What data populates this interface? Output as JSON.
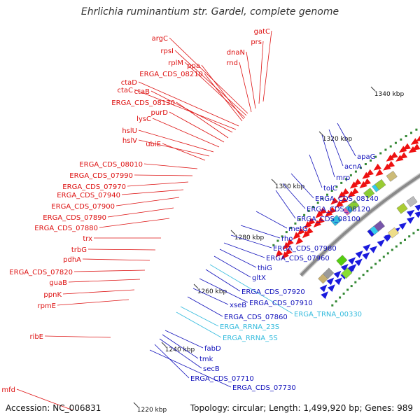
{
  "title": "Ehrlichia ruminantium str. Gardel, complete genome",
  "footer": {
    "accession": "Accession: NC_006831",
    "topology": "Topology: circular; Length: 1,499,920 bp; Genes: 989"
  },
  "colors": {
    "backbone": "#8a8a8a",
    "forward_label": "#dd1111",
    "reverse_label": "#1111bb",
    "rna_label": "#33bbdd",
    "forward_feature": "#ee1111",
    "reverse_feature": "#1a1add",
    "dots": "#338833"
  },
  "ticks": [
    {
      "label": "1340 kbp",
      "at": [
        556,
        133
      ]
    },
    {
      "label": "1320 kbp",
      "at": [
        482,
        197
      ]
    },
    {
      "label": "1300 kbp",
      "at": [
        414,
        265
      ]
    },
    {
      "label": "1280 kbp",
      "at": [
        356,
        338
      ]
    },
    {
      "label": "1260 kbp",
      "at": [
        303,
        415
      ]
    },
    {
      "label": "1240 kbp",
      "at": [
        257,
        498
      ]
    },
    {
      "label": "1220 kbp",
      "at": [
        217,
        584
      ]
    }
  ],
  "forward_genes": [
    {
      "label": "gatC",
      "at": [
        386,
        44
      ],
      "to": [
        376,
        145
      ]
    },
    {
      "label": "prs",
      "at": [
        374,
        59
      ],
      "to": [
        370,
        148
      ]
    },
    {
      "label": "dnaN",
      "at": [
        350,
        74
      ],
      "to": [
        365,
        155
      ]
    },
    {
      "label": "rnd",
      "at": [
        340,
        89
      ],
      "to": [
        359,
        160
      ]
    },
    {
      "label": "argC",
      "at": [
        240,
        54
      ],
      "to": [
        354,
        162
      ]
    },
    {
      "label": "rpsI",
      "at": [
        248,
        72
      ],
      "to": [
        352,
        165
      ]
    },
    {
      "label": "rplM",
      "at": [
        262,
        89
      ],
      "to": [
        350,
        168
      ]
    },
    {
      "label": "ppa",
      "at": [
        286,
        93
      ],
      "to": [
        348,
        170
      ]
    },
    {
      "label": "ERGA_CDS_08210",
      "at": [
        290,
        105
      ],
      "to": [
        346,
        173
      ]
    },
    {
      "label": "ctaD",
      "at": [
        196,
        117
      ],
      "to": [
        341,
        180
      ]
    },
    {
      "label": "ctaC",
      "at": [
        190,
        128
      ],
      "to": [
        337,
        185
      ]
    },
    {
      "label": "ctaB",
      "at": [
        214,
        130
      ],
      "to": [
        332,
        189
      ]
    },
    {
      "label": "ERGA_CDS_08130",
      "at": [
        250,
        146
      ],
      "to": [
        326,
        197
      ]
    },
    {
      "label": "purD",
      "at": [
        240,
        160
      ],
      "to": [
        320,
        203
      ]
    },
    {
      "label": "lysC",
      "at": [
        216,
        169
      ],
      "to": [
        313,
        210
      ]
    },
    {
      "label": "hslU",
      "at": [
        196,
        186
      ],
      "to": [
        305,
        217
      ]
    },
    {
      "label": "hslV",
      "at": [
        196,
        200
      ],
      "to": [
        299,
        223
      ]
    },
    {
      "label": "ubiE",
      "at": [
        230,
        205
      ],
      "to": [
        293,
        229
      ]
    },
    {
      "label": "ERGA_CDS_08010",
      "at": [
        204,
        234
      ],
      "to": [
        282,
        241
      ]
    },
    {
      "label": "ERGA_CDS_07990",
      "at": [
        190,
        250
      ],
      "to": [
        275,
        251
      ]
    },
    {
      "label": "ERGA_CDS_07970",
      "at": [
        180,
        266
      ],
      "to": [
        269,
        260
      ]
    },
    {
      "label": "ERGA_CDS_07940",
      "at": [
        172,
        278
      ],
      "to": [
        262,
        271
      ]
    },
    {
      "label": "ERGA_CDS_07900",
      "at": [
        164,
        294
      ],
      "to": [
        256,
        282
      ]
    },
    {
      "label": "ERGA_CDS_07890",
      "at": [
        152,
        310
      ],
      "to": [
        248,
        297
      ]
    },
    {
      "label": "ERGA_CDS_07880",
      "at": [
        140,
        325
      ],
      "to": [
        242,
        312
      ]
    },
    {
      "label": "trx",
      "at": [
        132,
        340
      ],
      "to": [
        230,
        340
      ]
    },
    {
      "label": "trbG",
      "at": [
        124,
        356
      ],
      "to": [
        222,
        357
      ]
    },
    {
      "label": "pdhA",
      "at": [
        116,
        370
      ],
      "to": [
        214,
        372
      ]
    },
    {
      "label": "ERGA_CDS_07820",
      "at": [
        104,
        388
      ],
      "to": [
        207,
        386
      ]
    },
    {
      "label": "guaB",
      "at": [
        96,
        403
      ],
      "to": [
        200,
        399
      ]
    },
    {
      "label": "ppnK",
      "at": [
        88,
        420
      ],
      "to": [
        192,
        414
      ]
    },
    {
      "label": "rpmE",
      "at": [
        80,
        436
      ],
      "to": [
        184,
        428
      ]
    },
    {
      "label": "ribE",
      "at": [
        62,
        480
      ],
      "to": [
        158,
        482
      ]
    },
    {
      "label": "mfd",
      "at": [
        22,
        556
      ],
      "to": [
        104,
        586
      ]
    }
  ],
  "reverse_genes": [
    {
      "label": "apaG",
      "at": [
        510,
        223
      ],
      "to": [
        482,
        176
      ]
    },
    {
      "label": "acnA",
      "at": [
        492,
        237
      ],
      "to": [
        470,
        185
      ]
    },
    {
      "label": "mrp",
      "at": [
        480,
        253
      ],
      "to": [
        460,
        193
      ]
    },
    {
      "label": "tolC",
      "at": [
        462,
        268
      ],
      "to": [
        442,
        221
      ]
    },
    {
      "label": "ERGA_CDS_08140",
      "at": [
        450,
        283
      ],
      "to": [
        416,
        248
      ]
    },
    {
      "label": "ERGA_CDS_08120",
      "at": [
        438,
        298
      ],
      "to": [
        404,
        262
      ]
    },
    {
      "label": "ERGA_CDS_08100",
      "at": [
        424,
        312
      ],
      "to": [
        394,
        272
      ]
    },
    {
      "label": "metG",
      "at": [
        412,
        326
      ],
      "to": [
        366,
        302
      ]
    },
    {
      "label": "rho",
      "at": [
        402,
        340
      ],
      "to": [
        344,
        322
      ]
    },
    {
      "label": "ERGA_CDS_07980",
      "at": [
        390,
        354
      ],
      "to": [
        330,
        336
      ]
    },
    {
      "label": "ERGA_CDS_07960",
      "at": [
        380,
        368
      ],
      "to": [
        320,
        347
      ]
    },
    {
      "label": "thiG",
      "at": [
        368,
        382
      ],
      "to": [
        314,
        356
      ]
    },
    {
      "label": "gltX",
      "at": [
        360,
        396
      ],
      "to": [
        306,
        366
      ]
    },
    {
      "label": "ERGA_CDS_07920",
      "at": [
        345,
        416
      ],
      "to": [
        294,
        385
      ]
    },
    {
      "label": "ERGA_CDS_07910",
      "at": [
        356,
        432
      ],
      "to": [
        285,
        398
      ]
    },
    {
      "label": "xseB",
      "at": [
        328,
        435
      ],
      "to": [
        276,
        412
      ]
    },
    {
      "label": "ERGA_CDS_07860",
      "at": [
        320,
        452
      ],
      "to": [
        268,
        424
      ]
    },
    {
      "label": "fabD",
      "at": [
        292,
        497
      ],
      "to": [
        236,
        472
      ]
    },
    {
      "label": "tmk",
      "at": [
        285,
        512
      ],
      "to": [
        232,
        478
      ]
    },
    {
      "label": "secB",
      "at": [
        290,
        526
      ],
      "to": [
        228,
        484
      ]
    },
    {
      "label": "ERGA_CDS_07710",
      "at": [
        272,
        540
      ],
      "to": [
        221,
        492
      ]
    },
    {
      "label": "ERGA_CDS_07730",
      "at": [
        332,
        553
      ],
      "to": [
        214,
        500
      ]
    }
  ],
  "rna_genes": [
    {
      "label": "ERGA_TRNA_00330",
      "at": [
        420,
        448
      ],
      "to": [
        300,
        378
      ]
    },
    {
      "label": "ERGA_RRNA_23S",
      "at": [
        314,
        466
      ],
      "to": [
        258,
        438
      ]
    },
    {
      "label": "ERGA_RRNA_5S",
      "at": [
        318,
        482
      ],
      "to": [
        252,
        446
      ]
    }
  ],
  "feature_blocks": [
    {
      "pos": 0.04,
      "ring": -26,
      "color": "#c8b070"
    },
    {
      "pos": 0.06,
      "ring": -26,
      "color": "#9a9a9a"
    },
    {
      "pos": 0.115,
      "ring": -26,
      "color": "#55cc11"
    },
    {
      "pos": 0.1,
      "ring": -44,
      "color": "#88dd33"
    },
    {
      "pos": 0.18,
      "ring": 22,
      "color": "#33bbdd"
    },
    {
      "pos": 0.23,
      "ring": 22,
      "color": "#ffaa66"
    },
    {
      "pos": 0.225,
      "ring": 22,
      "color": "#dd66aa"
    },
    {
      "pos": 0.235,
      "ring": 22,
      "color": "#33bbdd"
    },
    {
      "pos": 0.245,
      "ring": 22,
      "color": "#88cc33"
    },
    {
      "pos": 0.24,
      "ring": -24,
      "color": "#1a1add"
    },
    {
      "pos": 0.25,
      "ring": -24,
      "color": "#33ccee"
    },
    {
      "pos": 0.265,
      "ring": -24,
      "color": "#7755aa"
    },
    {
      "pos": 0.285,
      "ring": -44,
      "color": "#eedd88"
    },
    {
      "pos": 0.3,
      "ring": 22,
      "color": "#88cc33"
    },
    {
      "pos": 0.33,
      "ring": 22,
      "color": "#33ccee"
    },
    {
      "pos": 0.34,
      "ring": 22,
      "color": "#99cc33"
    },
    {
      "pos": 0.38,
      "ring": 22,
      "color": "#ccbb77"
    },
    {
      "pos": 0.35,
      "ring": -24,
      "color": "#aacc33"
    },
    {
      "pos": 0.385,
      "ring": -24,
      "color": "#bbbbbb"
    },
    {
      "pos": 0.43,
      "ring": -44,
      "color": "#ee8899"
    },
    {
      "pos": 0.46,
      "ring": -44,
      "color": "#ff9922"
    },
    {
      "pos": 0.55,
      "ring": -24,
      "color": "#ee8899"
    },
    {
      "pos": 0.57,
      "ring": -24,
      "color": "#55bbee"
    },
    {
      "pos": 0.6,
      "ring": -24,
      "color": "#dd55aa"
    },
    {
      "pos": 0.56,
      "ring": 22,
      "color": "#bbbbbb"
    },
    {
      "pos": 0.63,
      "ring": 22,
      "color": "#88cc33"
    },
    {
      "pos": 0.64,
      "ring": 22,
      "color": "#33bbdd"
    },
    {
      "pos": 0.65,
      "ring": 22,
      "color": "#ee8899"
    },
    {
      "pos": 0.655,
      "ring": -24,
      "color": "#ee8899"
    },
    {
      "pos": 0.7,
      "ring": 22,
      "color": "#33ccee"
    },
    {
      "pos": 0.705,
      "ring": -24,
      "color": "#33aadd"
    },
    {
      "pos": 0.76,
      "ring": 22,
      "color": "#aaaaaa"
    },
    {
      "pos": 0.8,
      "ring": 22,
      "color": "#aaaaaa"
    },
    {
      "pos": 0.81,
      "ring": -24,
      "color": "#8877bb"
    },
    {
      "pos": 0.815,
      "ring": -24,
      "color": "#88cc33"
    },
    {
      "pos": 0.83,
      "ring": -24,
      "color": "#bbbbbb"
    },
    {
      "pos": 0.85,
      "ring": 22,
      "color": "#bbbbbb"
    }
  ]
}
